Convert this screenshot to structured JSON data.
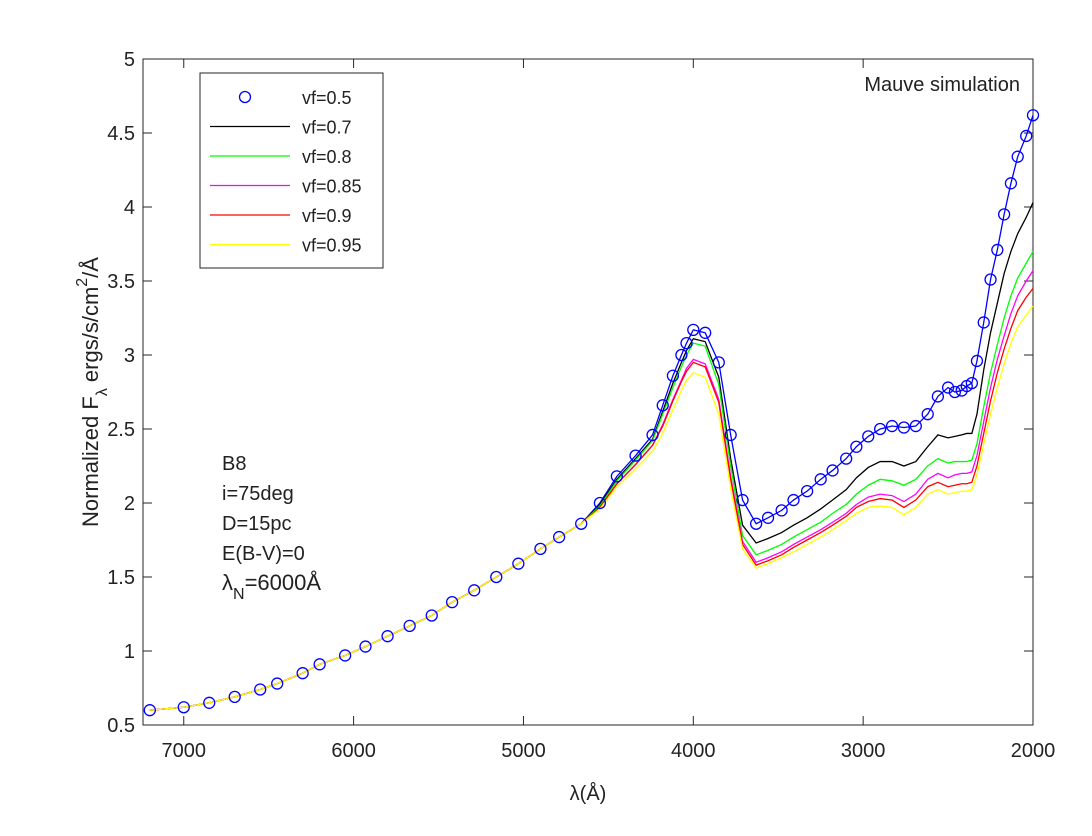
{
  "chart_data": {
    "type": "line",
    "xlabel": "λ(Å)",
    "ylabel": [
      "Normalized F",
      "λ",
      " ergs/s/cm",
      "2",
      "/Å"
    ],
    "ylabel_scripts": [
      "none",
      "sub",
      "none",
      "sup",
      "none"
    ],
    "annotations": [
      "Mauve simulation",
      "B8",
      "i=75deg",
      "D=15pc",
      "E(B-V)=0"
    ],
    "annotation_lambda": [
      "λ",
      "N",
      "=6000Å"
    ],
    "annotation_lambda_scripts": [
      "none",
      "sub",
      "none"
    ],
    "legend": "northwest",
    "grid": false,
    "xlim": [
      7240,
      2000
    ],
    "xticks": [
      7000,
      6000,
      5000,
      4000,
      3000,
      2000
    ],
    "ylim": [
      0.5,
      5
    ],
    "yticks": [
      0.5,
      1,
      1.5,
      2,
      2.5,
      3,
      3.5,
      4,
      4.5,
      5
    ],
    "x": [
      7200,
      7000,
      6850,
      6700,
      6550,
      6450,
      6300,
      6200,
      6050,
      5930,
      5800,
      5670,
      5540,
      5420,
      5290,
      5160,
      5030,
      4900,
      4790,
      4660,
      4550,
      4450,
      4340,
      4240,
      4180,
      4120,
      4070,
      4040,
      4000,
      3930,
      3850,
      3780,
      3710,
      3630,
      3560,
      3480,
      3410,
      3330,
      3250,
      3180,
      3100,
      3040,
      2970,
      2900,
      2830,
      2760,
      2690,
      2620,
      2560,
      2500,
      2460,
      2420,
      2390,
      2360,
      2330,
      2290,
      2250,
      2210,
      2170,
      2130,
      2090,
      2040,
      2000
    ],
    "series": [
      {
        "name": "vf=0.5",
        "color": "#0000ff",
        "marker": "circle",
        "values": [
          0.6,
          0.62,
          0.65,
          0.69,
          0.74,
          0.78,
          0.85,
          0.91,
          0.97,
          1.03,
          1.1,
          1.17,
          1.24,
          1.33,
          1.41,
          1.5,
          1.59,
          1.69,
          1.77,
          1.86,
          2.0,
          2.18,
          2.32,
          2.46,
          2.66,
          2.86,
          3.0,
          3.08,
          3.17,
          3.15,
          2.95,
          2.46,
          2.02,
          1.86,
          1.9,
          1.95,
          2.02,
          2.08,
          2.16,
          2.22,
          2.3,
          2.38,
          2.45,
          2.5,
          2.52,
          2.51,
          2.52,
          2.6,
          2.72,
          2.78,
          2.75,
          2.76,
          2.79,
          2.81,
          2.96,
          3.22,
          3.51,
          3.71,
          3.95,
          4.16,
          4.34,
          4.48,
          4.62
        ]
      },
      {
        "name": "vf=0.7",
        "color": "#000000",
        "marker": "none",
        "values": [
          0.6,
          0.62,
          0.65,
          0.69,
          0.74,
          0.78,
          0.85,
          0.91,
          0.97,
          1.03,
          1.1,
          1.17,
          1.24,
          1.33,
          1.41,
          1.5,
          1.59,
          1.69,
          1.77,
          1.86,
          1.99,
          2.16,
          2.3,
          2.43,
          2.62,
          2.81,
          2.95,
          3.03,
          3.11,
          3.09,
          2.85,
          2.3,
          1.85,
          1.73,
          1.76,
          1.8,
          1.85,
          1.9,
          1.96,
          2.02,
          2.09,
          2.17,
          2.24,
          2.28,
          2.28,
          2.25,
          2.28,
          2.38,
          2.46,
          2.44,
          2.45,
          2.46,
          2.47,
          2.47,
          2.6,
          2.9,
          3.15,
          3.35,
          3.55,
          3.7,
          3.82,
          3.93,
          4.03
        ]
      },
      {
        "name": "vf=0.8",
        "color": "#00ff00",
        "marker": "none",
        "values": [
          0.6,
          0.62,
          0.65,
          0.69,
          0.74,
          0.78,
          0.85,
          0.91,
          0.97,
          1.03,
          1.1,
          1.17,
          1.24,
          1.33,
          1.41,
          1.5,
          1.59,
          1.69,
          1.77,
          1.86,
          1.98,
          2.15,
          2.29,
          2.42,
          2.6,
          2.78,
          2.92,
          3.0,
          3.08,
          3.06,
          2.8,
          2.25,
          1.78,
          1.65,
          1.68,
          1.72,
          1.77,
          1.82,
          1.87,
          1.93,
          1.99,
          2.06,
          2.12,
          2.16,
          2.15,
          2.12,
          2.16,
          2.25,
          2.3,
          2.27,
          2.28,
          2.28,
          2.28,
          2.29,
          2.4,
          2.65,
          2.88,
          3.07,
          3.25,
          3.4,
          3.52,
          3.62,
          3.7
        ]
      },
      {
        "name": "vf=0.85",
        "color": "#ff00ff",
        "marker": "none",
        "values": [
          0.6,
          0.62,
          0.65,
          0.69,
          0.74,
          0.78,
          0.85,
          0.91,
          0.97,
          1.03,
          1.1,
          1.17,
          1.24,
          1.33,
          1.41,
          1.5,
          1.59,
          1.69,
          1.77,
          1.86,
          1.97,
          2.13,
          2.26,
          2.39,
          2.53,
          2.7,
          2.83,
          2.91,
          2.97,
          2.94,
          2.7,
          2.18,
          1.74,
          1.6,
          1.63,
          1.67,
          1.72,
          1.77,
          1.82,
          1.87,
          1.93,
          1.99,
          2.04,
          2.06,
          2.05,
          2.01,
          2.06,
          2.16,
          2.2,
          2.17,
          2.19,
          2.2,
          2.2,
          2.21,
          2.32,
          2.55,
          2.78,
          2.97,
          3.13,
          3.28,
          3.4,
          3.5,
          3.57
        ]
      },
      {
        "name": "vf=0.9",
        "color": "#ff0000",
        "marker": "none",
        "values": [
          0.6,
          0.62,
          0.65,
          0.69,
          0.74,
          0.78,
          0.85,
          0.91,
          0.97,
          1.03,
          1.1,
          1.17,
          1.24,
          1.33,
          1.41,
          1.5,
          1.59,
          1.69,
          1.77,
          1.86,
          1.97,
          2.13,
          2.26,
          2.39,
          2.52,
          2.69,
          2.82,
          2.89,
          2.95,
          2.92,
          2.68,
          2.16,
          1.72,
          1.58,
          1.61,
          1.65,
          1.7,
          1.75,
          1.8,
          1.85,
          1.91,
          1.97,
          2.01,
          2.03,
          2.02,
          1.97,
          2.02,
          2.11,
          2.14,
          2.11,
          2.12,
          2.13,
          2.13,
          2.14,
          2.25,
          2.47,
          2.69,
          2.88,
          3.04,
          3.18,
          3.3,
          3.39,
          3.45
        ]
      },
      {
        "name": "vf=0.95",
        "color": "#ffff00",
        "marker": "none",
        "values": [
          0.6,
          0.62,
          0.65,
          0.69,
          0.74,
          0.78,
          0.85,
          0.91,
          0.97,
          1.03,
          1.1,
          1.17,
          1.24,
          1.33,
          1.41,
          1.5,
          1.59,
          1.69,
          1.77,
          1.86,
          1.96,
          2.11,
          2.23,
          2.35,
          2.47,
          2.63,
          2.76,
          2.83,
          2.88,
          2.85,
          2.6,
          2.1,
          1.69,
          1.56,
          1.59,
          1.63,
          1.67,
          1.72,
          1.77,
          1.82,
          1.88,
          1.93,
          1.97,
          1.98,
          1.97,
          1.92,
          1.97,
          2.06,
          2.09,
          2.06,
          2.07,
          2.08,
          2.08,
          2.09,
          2.19,
          2.4,
          2.6,
          2.78,
          2.94,
          3.08,
          3.19,
          3.27,
          3.33
        ]
      }
    ]
  }
}
